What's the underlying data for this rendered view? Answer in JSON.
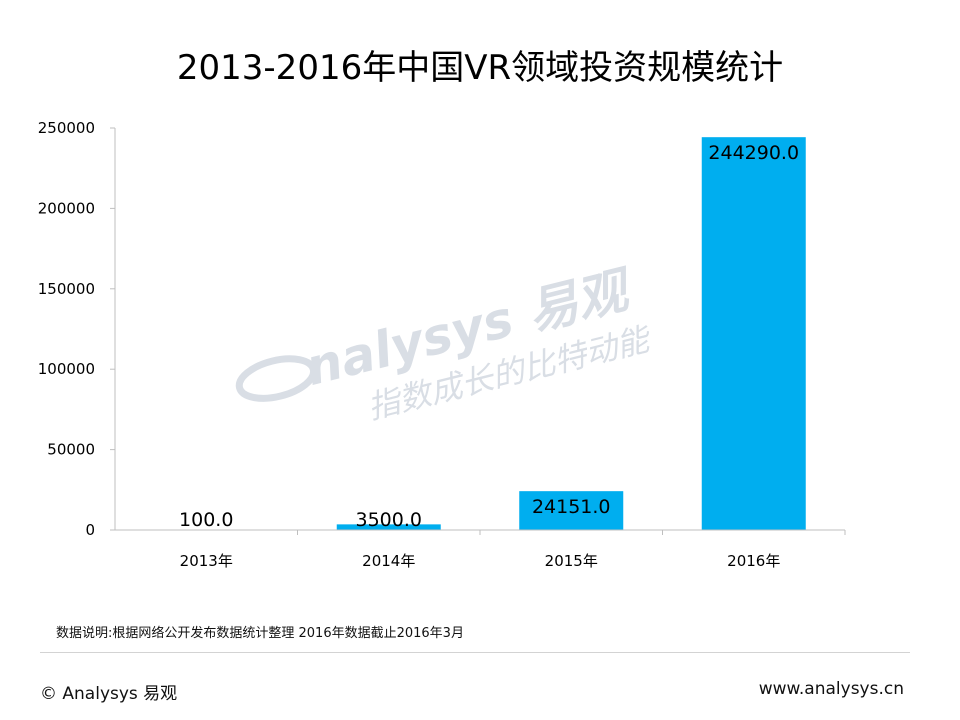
{
  "title": "2013-2016年中国VR领域投资规模统计",
  "chart_data": {
    "type": "bar",
    "categories": [
      "2013年",
      "2014年",
      "2015年",
      "2016年"
    ],
    "values": [
      100.0,
      3500.0,
      24151.0,
      244290.0
    ],
    "data_labels": [
      "100.0",
      "3500.0",
      "24151.0",
      "244290.0"
    ],
    "ylim": [
      0,
      250000
    ],
    "yticks": [
      0,
      50000,
      100000,
      150000,
      200000,
      250000
    ],
    "ytick_labels": [
      "0",
      "50000",
      "100000",
      "150000",
      "200000",
      "250000"
    ],
    "xlabel": "",
    "ylabel": "",
    "grid": false,
    "bar_color": "#00aeef"
  },
  "watermark": {
    "brand": "nalysys 易观",
    "slogan": "指数成长的比特动能"
  },
  "note": "数据说明:根据网络公开发布数据统计整理  2016年数据截止2016年3月",
  "footer": {
    "left": "© Analysys 易观",
    "right": "www.analysys.cn"
  }
}
